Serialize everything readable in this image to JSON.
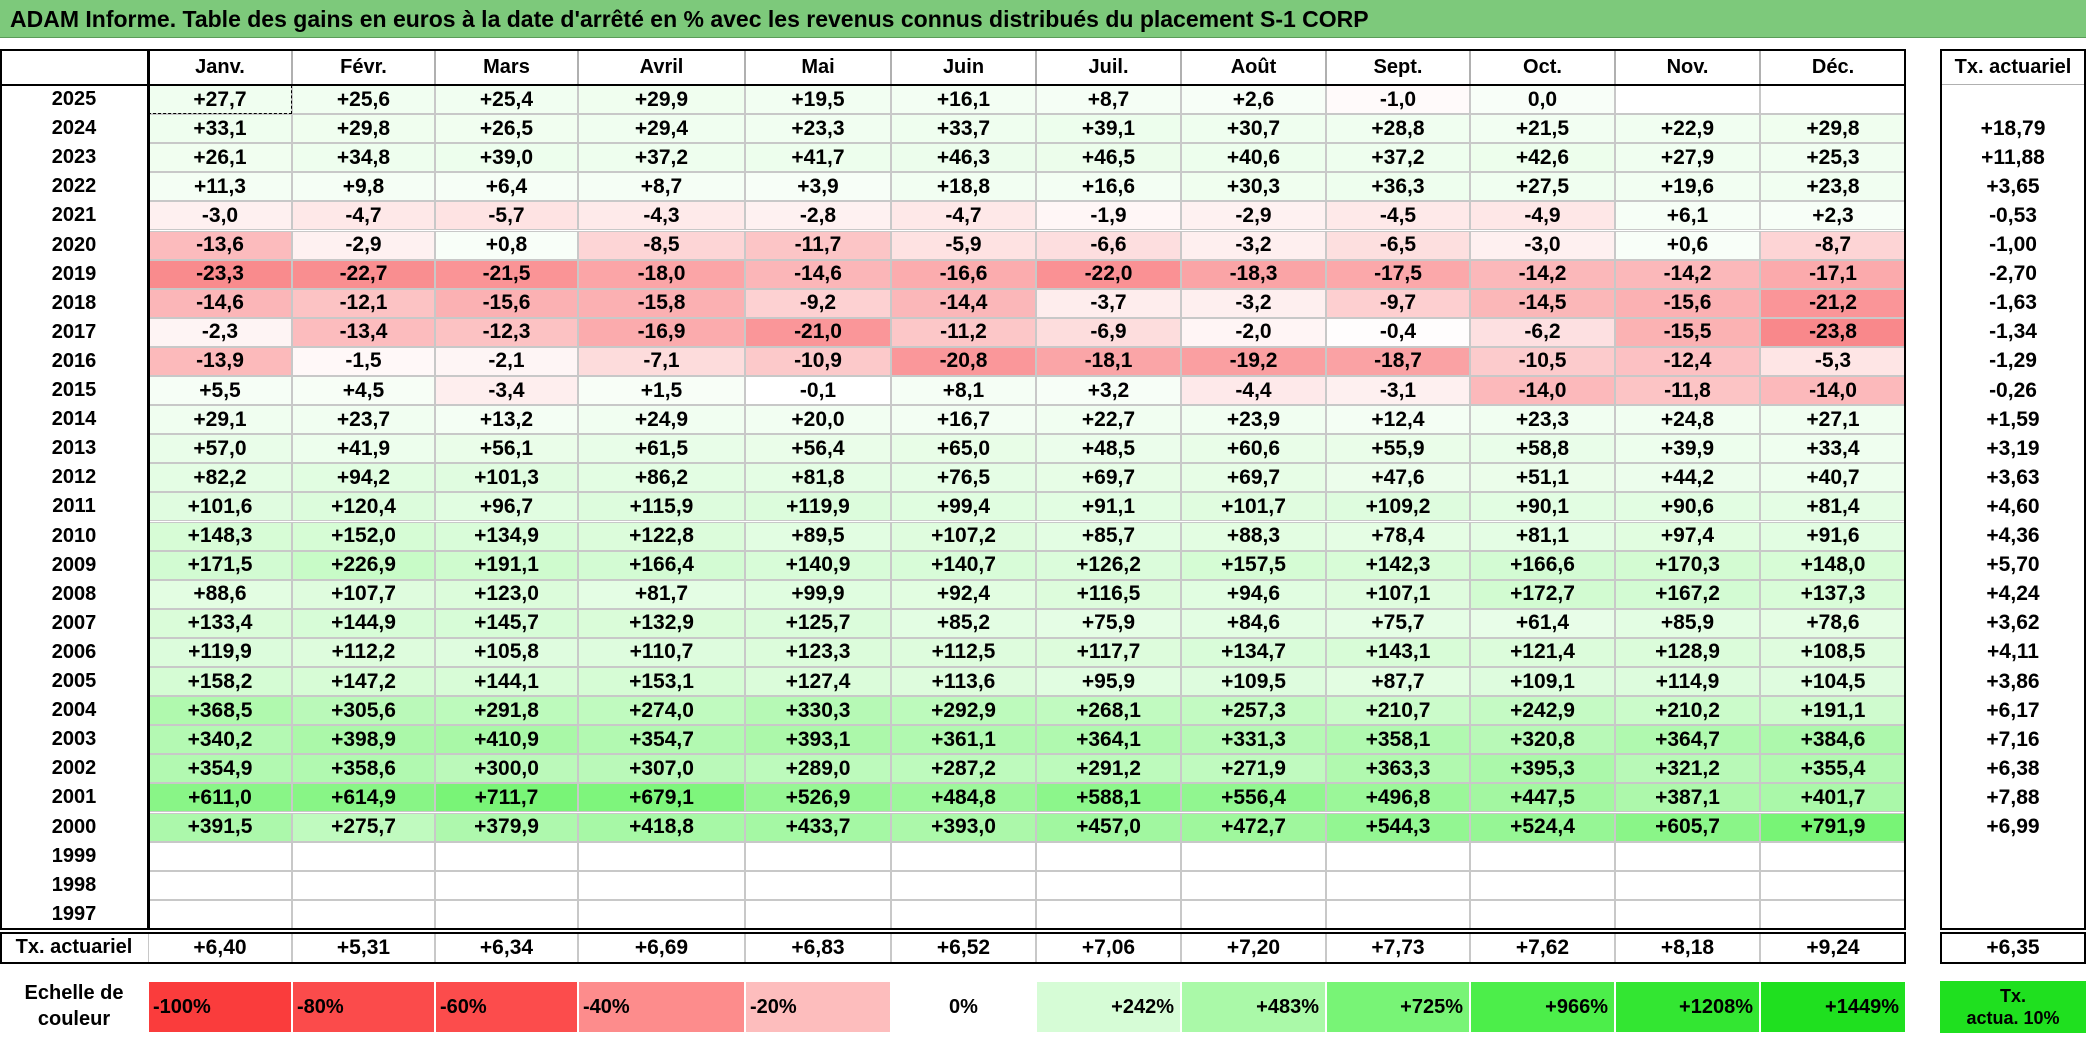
{
  "title": "ADAM Informe. Table des gains en euros à la date d'arrêté en % avec les revenus connus distribués du placement S-1 CORP",
  "chart_data": {
    "type": "heatmap",
    "months": [
      "Janv.",
      "Févr.",
      "Mars",
      "Avril",
      "Mai",
      "Juin",
      "Juil.",
      "Août",
      "Sept.",
      "Oct.",
      "Nov.",
      "Déc."
    ],
    "tx_header": "Tx. actuariel",
    "rows": [
      {
        "year": "2025",
        "values": [
          "+27,7",
          "+25,6",
          "+25,4",
          "+29,9",
          "+19,5",
          "+16,1",
          "+8,7",
          "+2,6",
          "-1,0",
          "0,0",
          "",
          ""
        ],
        "tx": ""
      },
      {
        "year": "2024",
        "values": [
          "+33,1",
          "+29,8",
          "+26,5",
          "+29,4",
          "+23,3",
          "+33,7",
          "+39,1",
          "+30,7",
          "+28,8",
          "+21,5",
          "+22,9",
          "+29,8"
        ],
        "tx": "+18,79"
      },
      {
        "year": "2023",
        "values": [
          "+26,1",
          "+34,8",
          "+39,0",
          "+37,2",
          "+41,7",
          "+46,3",
          "+46,5",
          "+40,6",
          "+37,2",
          "+42,6",
          "+27,9",
          "+25,3"
        ],
        "tx": "+11,88"
      },
      {
        "year": "2022",
        "values": [
          "+11,3",
          "+9,8",
          "+6,4",
          "+8,7",
          "+3,9",
          "+18,8",
          "+16,6",
          "+30,3",
          "+36,3",
          "+27,5",
          "+19,6",
          "+23,8"
        ],
        "tx": "+3,65"
      },
      {
        "year": "2021",
        "values": [
          "-3,0",
          "-4,7",
          "-5,7",
          "-4,3",
          "-2,8",
          "-4,7",
          "-1,9",
          "-2,9",
          "-4,5",
          "-4,9",
          "+6,1",
          "+2,3"
        ],
        "tx": "-0,53"
      },
      {
        "year": "2020",
        "values": [
          "-13,6",
          "-2,9",
          "+0,8",
          "-8,5",
          "-11,7",
          "-5,9",
          "-6,6",
          "-3,2",
          "-6,5",
          "-3,0",
          "+0,6",
          "-8,7"
        ],
        "tx": "-1,00"
      },
      {
        "year": "2019",
        "values": [
          "-23,3",
          "-22,7",
          "-21,5",
          "-18,0",
          "-14,6",
          "-16,6",
          "-22,0",
          "-18,3",
          "-17,5",
          "-14,2",
          "-14,2",
          "-17,1"
        ],
        "tx": "-2,70"
      },
      {
        "year": "2018",
        "values": [
          "-14,6",
          "-12,1",
          "-15,6",
          "-15,8",
          "-9,2",
          "-14,4",
          "-3,7",
          "-3,2",
          "-9,7",
          "-14,5",
          "-15,6",
          "-21,2"
        ],
        "tx": "-1,63"
      },
      {
        "year": "2017",
        "values": [
          "-2,3",
          "-13,4",
          "-12,3",
          "-16,9",
          "-21,0",
          "-11,2",
          "-6,9",
          "-2,0",
          "-0,4",
          "-6,2",
          "-15,5",
          "-23,8"
        ],
        "tx": "-1,34"
      },
      {
        "year": "2016",
        "values": [
          "-13,9",
          "-1,5",
          "-2,1",
          "-7,1",
          "-10,9",
          "-20,8",
          "-18,1",
          "-19,2",
          "-18,7",
          "-10,5",
          "-12,4",
          "-5,3"
        ],
        "tx": "-1,29"
      },
      {
        "year": "2015",
        "values": [
          "+5,5",
          "+4,5",
          "-3,4",
          "+1,5",
          "-0,1",
          "+8,1",
          "+3,2",
          "-4,4",
          "-3,1",
          "-14,0",
          "-11,8",
          "-14,0"
        ],
        "tx": "-0,26"
      },
      {
        "year": "2014",
        "values": [
          "+29,1",
          "+23,7",
          "+13,2",
          "+24,9",
          "+20,0",
          "+16,7",
          "+22,7",
          "+23,9",
          "+12,4",
          "+23,3",
          "+24,8",
          "+27,1"
        ],
        "tx": "+1,59"
      },
      {
        "year": "2013",
        "values": [
          "+57,0",
          "+41,9",
          "+56,1",
          "+61,5",
          "+56,4",
          "+65,0",
          "+48,5",
          "+60,6",
          "+55,9",
          "+58,8",
          "+39,9",
          "+33,4"
        ],
        "tx": "+3,19"
      },
      {
        "year": "2012",
        "values": [
          "+82,2",
          "+94,2",
          "+101,3",
          "+86,2",
          "+81,8",
          "+76,5",
          "+69,7",
          "+69,7",
          "+47,6",
          "+51,1",
          "+44,2",
          "+40,7"
        ],
        "tx": "+3,63"
      },
      {
        "year": "2011",
        "values": [
          "+101,6",
          "+120,4",
          "+96,7",
          "+115,9",
          "+119,9",
          "+99,4",
          "+91,1",
          "+101,7",
          "+109,2",
          "+90,1",
          "+90,6",
          "+81,4"
        ],
        "tx": "+4,60"
      },
      {
        "year": "2010",
        "values": [
          "+148,3",
          "+152,0",
          "+134,9",
          "+122,8",
          "+89,5",
          "+107,2",
          "+85,7",
          "+88,3",
          "+78,4",
          "+81,1",
          "+97,4",
          "+91,6"
        ],
        "tx": "+4,36"
      },
      {
        "year": "2009",
        "values": [
          "+171,5",
          "+226,9",
          "+191,1",
          "+166,4",
          "+140,9",
          "+140,7",
          "+126,2",
          "+157,5",
          "+142,3",
          "+166,6",
          "+170,3",
          "+148,0"
        ],
        "tx": "+5,70"
      },
      {
        "year": "2008",
        "values": [
          "+88,6",
          "+107,7",
          "+123,0",
          "+81,7",
          "+99,9",
          "+92,4",
          "+116,5",
          "+94,6",
          "+107,1",
          "+172,7",
          "+167,2",
          "+137,3"
        ],
        "tx": "+4,24"
      },
      {
        "year": "2007",
        "values": [
          "+133,4",
          "+144,9",
          "+145,7",
          "+132,9",
          "+125,7",
          "+85,2",
          "+75,9",
          "+84,6",
          "+75,7",
          "+61,4",
          "+85,9",
          "+78,6"
        ],
        "tx": "+3,62"
      },
      {
        "year": "2006",
        "values": [
          "+119,9",
          "+112,2",
          "+105,8",
          "+110,7",
          "+123,3",
          "+112,5",
          "+117,7",
          "+134,7",
          "+143,1",
          "+121,4",
          "+128,9",
          "+108,5"
        ],
        "tx": "+4,11"
      },
      {
        "year": "2005",
        "values": [
          "+158,2",
          "+147,2",
          "+144,1",
          "+153,1",
          "+127,4",
          "+113,6",
          "+95,9",
          "+109,5",
          "+87,7",
          "+109,1",
          "+114,9",
          "+104,5"
        ],
        "tx": "+3,86"
      },
      {
        "year": "2004",
        "values": [
          "+368,5",
          "+305,6",
          "+291,8",
          "+274,0",
          "+330,3",
          "+292,9",
          "+268,1",
          "+257,3",
          "+210,7",
          "+242,9",
          "+210,2",
          "+191,1"
        ],
        "tx": "+6,17"
      },
      {
        "year": "2003",
        "values": [
          "+340,2",
          "+398,9",
          "+410,9",
          "+354,7",
          "+393,1",
          "+361,1",
          "+364,1",
          "+331,3",
          "+358,1",
          "+320,8",
          "+364,7",
          "+384,6"
        ],
        "tx": "+7,16"
      },
      {
        "year": "2002",
        "values": [
          "+354,9",
          "+358,6",
          "+300,0",
          "+307,0",
          "+289,0",
          "+287,2",
          "+291,2",
          "+271,9",
          "+363,3",
          "+395,3",
          "+321,2",
          "+355,4"
        ],
        "tx": "+6,38"
      },
      {
        "year": "2001",
        "values": [
          "+611,0",
          "+614,9",
          "+711,7",
          "+679,1",
          "+526,9",
          "+484,8",
          "+588,1",
          "+556,4",
          "+496,8",
          "+447,5",
          "+387,1",
          "+401,7"
        ],
        "tx": "+7,88"
      },
      {
        "year": "2000",
        "values": [
          "+391,5",
          "+275,7",
          "+379,9",
          "+418,8",
          "+433,7",
          "+393,0",
          "+457,0",
          "+472,7",
          "+544,3",
          "+524,4",
          "+605,7",
          "+791,9"
        ],
        "tx": "+6,99"
      },
      {
        "year": "1999",
        "values": [
          "",
          "",
          "",
          "",
          "",
          "",
          "",
          "",
          "",
          "",
          "",
          ""
        ],
        "tx": ""
      },
      {
        "year": "1998",
        "values": [
          "",
          "",
          "",
          "",
          "",
          "",
          "",
          "",
          "",
          "",
          "",
          ""
        ],
        "tx": ""
      },
      {
        "year": "1997",
        "values": [
          "",
          "",
          "",
          "",
          "",
          "",
          "",
          "",
          "",
          "",
          "",
          ""
        ],
        "tx": ""
      }
    ],
    "footer": {
      "label": "Tx. actuariel",
      "values": [
        "+6,40",
        "+5,31",
        "+6,34",
        "+6,69",
        "+6,83",
        "+6,52",
        "+7,06",
        "+7,20",
        "+7,73",
        "+7,62",
        "+8,18",
        "+9,24"
      ],
      "tx": "+6,35"
    },
    "scale": {
      "label_line1": "Echelle de",
      "label_line2": "couleur",
      "items": [
        {
          "label": "-100%",
          "value": -100,
          "color": "#fa3c3c"
        },
        {
          "label": "-80%",
          "value": -80,
          "color": "#fb4b4b"
        },
        {
          "label": "-60%",
          "value": -60,
          "color": "#fc4c4c"
        },
        {
          "label": "-40%",
          "value": -40,
          "color": "#fd8c8c"
        },
        {
          "label": "-20%",
          "value": -20,
          "color": "#fdbdbd"
        },
        {
          "label": "0%",
          "value": 0,
          "color": "#ffffff"
        },
        {
          "label": "+242%",
          "value": 242,
          "color": "#d6fcd6"
        },
        {
          "label": "+483%",
          "value": 483,
          "color": "#aaf9a8"
        },
        {
          "label": "+725%",
          "value": 725,
          "color": "#78f476"
        },
        {
          "label": "+966%",
          "value": 966,
          "color": "#4cee4a"
        },
        {
          "label": "+1208%",
          "value": 1208,
          "color": "#33e632"
        },
        {
          "label": "+1449%",
          "value": 1449,
          "color": "#1fe01f"
        }
      ],
      "tx_line1": "Tx.",
      "tx_line2": "actua. 10%",
      "tx_color": "#1fe01f"
    },
    "colors": {
      "title_bar": "#7dc97b",
      "negative_max": "#f9878a",
      "positive_max": "#78f476"
    }
  }
}
